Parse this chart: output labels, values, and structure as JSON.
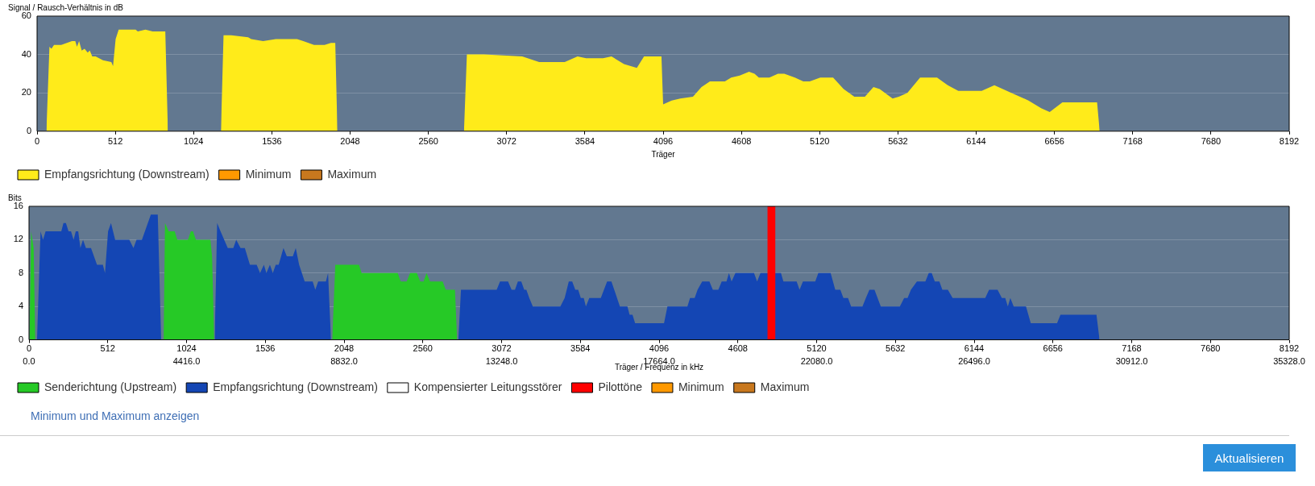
{
  "chart_data": [
    {
      "type": "area",
      "ylabel": "Signal / Rausch-Verhältnis in dB",
      "xlabel": "Träger",
      "xlim": [
        0,
        8192
      ],
      "xticks": [
        0,
        512,
        1024,
        1536,
        2048,
        2560,
        3072,
        3584,
        4096,
        4608,
        5120,
        5632,
        6144,
        6656,
        7168,
        7680,
        8192
      ],
      "ylim": [
        0,
        60
      ],
      "yticks": [
        0,
        20,
        40,
        60
      ],
      "grid": "y",
      "legend": "bottom",
      "series": [
        {
          "name": "Empfangsrichtung (Downstream)",
          "color": "#ffeb1a",
          "x": [
            61,
            81,
            94,
            111,
            158,
            228,
            250,
            261,
            275,
            292,
            311,
            331,
            345,
            361,
            383,
            431,
            486,
            497,
            514,
            534,
            645,
            659,
            709,
            756,
            839,
            856,
            1030,
            1203,
            1220,
            1270,
            1381,
            1401,
            1479,
            1562,
            1701,
            1742,
            1812,
            1881,
            1923,
            1951,
            1965,
            2380,
            2793,
            2812,
            2923,
            3174,
            3285,
            3452,
            3536,
            3592,
            3703,
            3758,
            3840,
            3924,
            3971,
            4085,
            4096,
            4152,
            4208,
            4291,
            4347,
            4402,
            4444,
            4500,
            4541,
            4597,
            4658,
            4694,
            4722,
            4791,
            4847,
            4889,
            4958,
            5013,
            5055,
            5124,
            5208,
            5277,
            5347,
            5416,
            5472,
            5513,
            5597,
            5638,
            5694,
            5777,
            5861,
            5888,
            5958,
            6027,
            6180,
            6263,
            6374,
            6486,
            6569,
            6625,
            6708,
            6935,
            6952
          ],
          "values": [
            0,
            44,
            43,
            45,
            45,
            47,
            47,
            44,
            47,
            42,
            43,
            41,
            42,
            39,
            39,
            37,
            36,
            34,
            48,
            53,
            53,
            52,
            53,
            52,
            52,
            0,
            null,
            0,
            50,
            50,
            49,
            48,
            47,
            48,
            48,
            47,
            45,
            45,
            46,
            46,
            0,
            null,
            0,
            40,
            40,
            39,
            36,
            36,
            39,
            38,
            38,
            39,
            35,
            33,
            39,
            39,
            14,
            16,
            17,
            18,
            23,
            26,
            26,
            26,
            28,
            29,
            31,
            30,
            28,
            28,
            30,
            30,
            28,
            26,
            26,
            28,
            28,
            22,
            18,
            18,
            23,
            22,
            17,
            18,
            20,
            28,
            28,
            28,
            24,
            21,
            21,
            24,
            20,
            16,
            12,
            10,
            15,
            15,
            0
          ]
        },
        {
          "name": "Minimum",
          "color": "#ff9900"
        },
        {
          "name": "Maximum",
          "color": "#c8781e"
        }
      ]
    },
    {
      "type": "area",
      "ylabel": "Bits",
      "xlabel": "Träger / Frequenz in kHz",
      "xlim": [
        0,
        8192
      ],
      "xticks": [
        0,
        512,
        1024,
        1536,
        2048,
        2560,
        3072,
        3584,
        4096,
        4608,
        5120,
        5632,
        6144,
        6656,
        7168,
        7680,
        8192
      ],
      "x2lim": [
        0,
        35328
      ],
      "x2ticks": [
        {
          "value": 0,
          "label": "0.0"
        },
        {
          "value": 4416,
          "label": "4416.0"
        },
        {
          "value": 8832,
          "label": "8832.0"
        },
        {
          "value": 13248,
          "label": "13248.0"
        },
        {
          "value": 17664,
          "label": "17664.0"
        },
        {
          "value": 22080,
          "label": "22080.0"
        },
        {
          "value": 26496,
          "label": "26496.0"
        },
        {
          "value": 30912,
          "label": "30912.0"
        },
        {
          "value": 35328,
          "label": "35328.0"
        }
      ],
      "ylim": [
        0,
        16
      ],
      "yticks": [
        0,
        4,
        8,
        12,
        16
      ],
      "grid": "y",
      "legend": "bottom",
      "series": [
        {
          "name": "Senderichtung (Upstream)",
          "color": "#26c926",
          "x": [
            3,
            14,
            30,
            41,
            458,
            875,
            884,
            908,
            947,
            964,
            1033,
            1052,
            1066,
            1085,
            1179,
            1190,
            1204,
            1590,
            1971,
            1991,
            2145,
            2162,
            2397,
            2416,
            2455,
            2477,
            2521,
            2543,
            2565,
            2584,
            2607,
            2689,
            2709,
            2769,
            2783
          ],
          "values": [
            0,
            13,
            11,
            0,
            null,
            0,
            14,
            13,
            13,
            12,
            12,
            13,
            13,
            12,
            12,
            10,
            0,
            null,
            0,
            9,
            9,
            8,
            8,
            7,
            7,
            8,
            8,
            7,
            7,
            8,
            7,
            7,
            6,
            6,
            0
          ]
        },
        {
          "name": "Empfangsrichtung (Downstream)",
          "color": "#1446b4",
          "x": [
            52,
            75,
            91,
            108,
            210,
            224,
            240,
            257,
            273,
            290,
            304,
            320,
            334,
            351,
            370,
            403,
            442,
            480,
            494,
            514,
            533,
            560,
            652,
            679,
            699,
            734,
            792,
            837,
            859,
            1030,
            1207,
            1223,
            1245,
            1292,
            1328,
            1347,
            1375,
            1403,
            1436,
            1480,
            1502,
            1527,
            1543,
            1566,
            1585,
            1604,
            1623,
            1654,
            1676,
            1715,
            1734,
            1756,
            1792,
            1844,
            1861,
            1880,
            1930,
            1944,
            1963,
            2380,
            2791,
            2808,
            3040,
            3062,
            3114,
            3137,
            3159,
            3178,
            3200,
            3219,
            3233,
            3252,
            3275,
            3454,
            3482,
            3509,
            3531,
            3551,
            3570,
            3587,
            3606,
            3620,
            3642,
            3717,
            3758,
            3786,
            3841,
            3890,
            3904,
            3923,
            3940,
            4128,
            4150,
            4280,
            4297,
            4327,
            4346,
            4376,
            4423,
            4445,
            4481,
            4503,
            4534,
            4550,
            4567,
            4592,
            4713,
            4733,
            4755,
            4888,
            4904,
            4990,
            5009,
            5031,
            5111,
            5131,
            5211,
            5241,
            5274,
            5294,
            5324,
            5344,
            5418,
            5440,
            5463,
            5496,
            5537,
            5661,
            5689,
            5711,
            5733,
            5772,
            5827,
            5849,
            5868,
            5888,
            5918,
            5937,
            5973,
            6004,
            6216,
            6241,
            6296,
            6324,
            6346,
            6363,
            6379,
            6401,
            6481,
            6512,
            6683,
            6705,
            6939,
            6959
          ],
          "values": [
            0,
            13,
            12,
            13,
            13,
            14,
            14,
            13,
            13,
            12,
            13,
            13,
            11,
            12,
            11,
            11,
            9,
            9,
            8,
            13,
            14,
            12,
            12,
            11,
            12,
            12,
            15,
            15,
            0,
            null,
            0,
            14,
            13,
            11,
            11,
            12,
            11,
            11,
            9,
            9,
            8,
            9,
            8,
            9,
            8,
            9,
            9,
            11,
            10,
            10,
            11,
            9,
            7,
            7,
            6,
            7,
            7,
            8,
            0,
            null,
            0,
            6,
            6,
            7,
            7,
            6,
            6,
            7,
            7,
            6,
            6,
            5,
            4,
            4,
            5,
            7,
            7,
            6,
            6,
            5,
            5,
            4,
            5,
            5,
            7,
            7,
            4,
            4,
            3,
            3,
            2,
            2,
            4,
            4,
            5,
            5,
            6,
            7,
            7,
            6,
            6,
            7,
            7,
            8,
            7,
            8,
            8,
            7,
            8,
            8,
            7,
            7,
            6,
            7,
            7,
            8,
            8,
            6,
            6,
            5,
            5,
            4,
            4,
            5,
            6,
            6,
            4,
            4,
            5,
            5,
            6,
            7,
            7,
            8,
            8,
            7,
            7,
            6,
            6,
            5,
            5,
            6,
            6,
            5,
            5,
            4,
            5,
            4,
            4,
            2,
            2,
            3,
            3,
            0
          ]
        },
        {
          "name": "Kompensierter Leitungsstörer",
          "color": "#ffffff"
        },
        {
          "name": "Pilottöne",
          "color": "#ff0000",
          "type": "bar",
          "x": [
            4826
          ],
          "values": [
            16
          ]
        },
        {
          "name": "Minimum",
          "color": "#ff9900"
        },
        {
          "name": "Maximum",
          "color": "#c8781e"
        }
      ],
      "annotations": [
        "Minimum und Maximum anzeigen",
        "Aktualisieren"
      ]
    }
  ]
}
